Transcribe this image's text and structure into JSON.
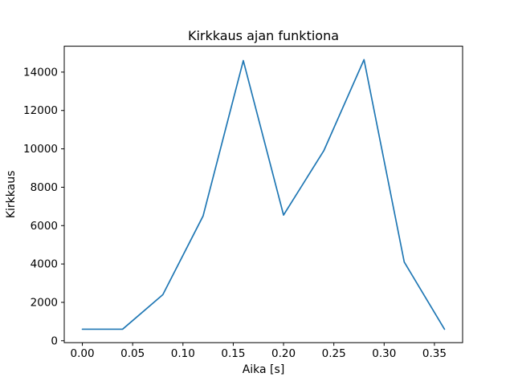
{
  "figure": {
    "title": "Kirkkaus ajan funktiona",
    "xlabel": "Aika [s]",
    "ylabel": "Kirkkaus"
  },
  "chart_data": {
    "type": "line",
    "title": "Kirkkaus ajan funktiona",
    "xlabel": "Aika [s]",
    "ylabel": "Kirkkaus",
    "x": [
      0.0,
      0.04,
      0.08,
      0.12,
      0.16,
      0.2,
      0.24,
      0.28,
      0.32,
      0.36
    ],
    "y": [
      600,
      600,
      2400,
      6500,
      14600,
      6550,
      9900,
      14650,
      4100,
      600
    ],
    "xlim": [
      -0.018,
      0.378
    ],
    "ylim": [
      -100,
      15350
    ],
    "xticks": {
      "values": [
        0.0,
        0.05,
        0.1,
        0.15,
        0.2,
        0.25,
        0.3,
        0.35
      ],
      "labels": [
        "0.00",
        "0.05",
        "0.10",
        "0.15",
        "0.20",
        "0.25",
        "0.30",
        "0.35"
      ]
    },
    "yticks": {
      "values": [
        0,
        2000,
        4000,
        6000,
        8000,
        10000,
        12000,
        14000
      ],
      "labels": [
        "0",
        "2000",
        "4000",
        "6000",
        "8000",
        "10000",
        "12000",
        "14000"
      ]
    },
    "line_color": "#1f77b4",
    "line_width": 1.7,
    "grid": false,
    "legend": null
  }
}
